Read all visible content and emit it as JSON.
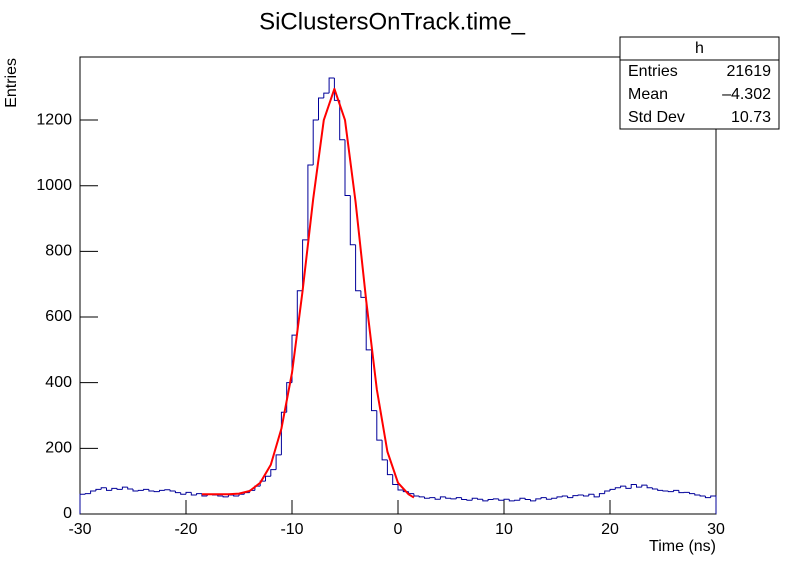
{
  "chart_data": {
    "type": "histogram",
    "title": "SiClustersOnTrack.time_",
    "xlabel": "Time (ns)",
    "ylabel": "Entries",
    "color": "#000099",
    "bins": [
      -30,
      -29.5,
      -29,
      -28.5,
      -28,
      -27.5,
      -27,
      -26.5,
      -26,
      -25.5,
      -25,
      -24.5,
      -24,
      -23.5,
      -23,
      -22.5,
      -22,
      -21.5,
      -21,
      -20.5,
      -20,
      -19.5,
      -19,
      -18.5,
      -18,
      -17.5,
      -17,
      -16.5,
      -16,
      -15.5,
      -15,
      -14.5,
      -14,
      -13.5,
      -13,
      -12.5,
      -12,
      -11.5,
      -11,
      -10.5,
      -10,
      -9.5,
      -9,
      -8.5,
      -8,
      -7.5,
      -7,
      -6.5,
      -6,
      -5.5,
      -5,
      -4.5,
      -4,
      -3.5,
      -3,
      -2.5,
      -2,
      -1.5,
      -1,
      -0.5,
      0,
      0.5,
      1,
      1.5,
      2,
      2.5,
      3,
      3.5,
      4,
      4.5,
      5,
      5.5,
      6,
      6.5,
      7,
      7.5,
      8,
      8.5,
      9,
      9.5,
      10,
      10.5,
      11,
      11.5,
      12,
      12.5,
      13,
      13.5,
      14,
      14.5,
      15,
      15.5,
      16,
      16.5,
      17,
      17.5,
      18,
      18.5,
      19,
      19.5,
      20,
      20.5,
      21,
      21.5,
      22,
      22.5,
      23,
      23.5,
      24,
      24.5,
      25,
      25.5,
      26,
      26.5,
      27,
      27.5,
      28,
      28.5,
      29,
      29.5,
      30
    ],
    "values": [
      60,
      62,
      70,
      75,
      80,
      72,
      78,
      75,
      82,
      76,
      70,
      72,
      75,
      70,
      68,
      72,
      74,
      70,
      65,
      60,
      66,
      58,
      62,
      55,
      60,
      58,
      55,
      52,
      58,
      55,
      60,
      65,
      72,
      85,
      100,
      115,
      135,
      180,
      310,
      400,
      545,
      680,
      835,
      1063,
      1200,
      1267,
      1282,
      1328,
      1260,
      1140,
      970,
      820,
      680,
      660,
      500,
      315,
      225,
      165,
      120,
      90,
      73,
      68,
      62,
      55,
      52,
      48,
      50,
      45,
      52,
      48,
      46,
      50,
      44,
      42,
      48,
      45,
      40,
      44,
      46,
      42,
      45,
      40,
      42,
      48,
      44,
      40,
      46,
      50,
      45,
      48,
      52,
      55,
      50,
      56,
      58,
      55,
      60,
      52,
      62,
      70,
      75,
      80,
      85,
      78,
      90,
      82,
      88,
      80,
      76,
      72,
      70,
      68,
      72,
      65,
      66,
      62,
      58,
      55,
      50,
      55
    ],
    "fit": {
      "color": "#ff0000",
      "x": [
        -18.5,
        -16,
        -15,
        -14,
        -13,
        -12,
        -11,
        -10,
        -9,
        -8,
        -7,
        -6,
        -5,
        -4,
        -3,
        -2,
        -1,
        0,
        1,
        1.5
      ],
      "values": [
        60,
        60,
        62,
        70,
        95,
        150,
        260,
        430,
        680,
        960,
        1200,
        1295,
        1200,
        950,
        650,
        380,
        190,
        95,
        60,
        50
      ]
    },
    "xlim": [
      -30,
      30
    ],
    "xticks": [
      -30,
      -20,
      -10,
      0,
      10,
      20,
      30
    ],
    "ylim": [
      0,
      1392
    ],
    "yticks": [
      0,
      200,
      400,
      600,
      800,
      1000,
      1200
    ],
    "stats": {
      "title": "h",
      "rows": [
        [
          "Entries",
          "21619"
        ],
        [
          "Mean",
          "–4.302"
        ],
        [
          "Std Dev",
          "10.73"
        ]
      ]
    }
  }
}
